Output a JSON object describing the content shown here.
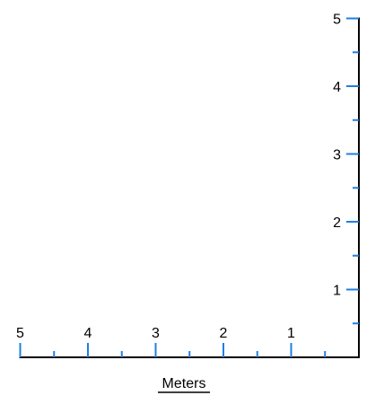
{
  "scale": {
    "unit_label": "Meters",
    "x_axis": {
      "ticks": [
        "5",
        "4",
        "3",
        "2",
        "1"
      ],
      "range": [
        5,
        0
      ],
      "minor_step": 0.5
    },
    "y_axis": {
      "ticks": [
        "1",
        "2",
        "3",
        "4",
        "5"
      ],
      "range": [
        0,
        5
      ],
      "minor_step": 0.5
    },
    "colors": {
      "axis": "#000000",
      "tick": "#1f7fe0"
    }
  }
}
